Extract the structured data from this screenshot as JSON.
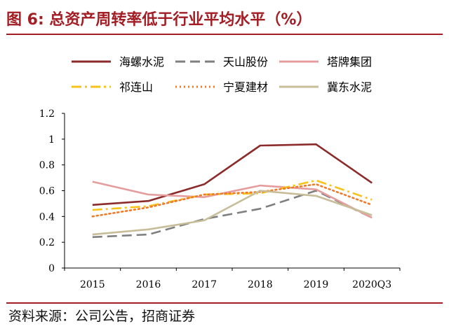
{
  "header": {
    "title": "图 6:  总资产周转率低于行业平均水平（%）"
  },
  "footer": {
    "source": "资料来源：公司公告，招商证券"
  },
  "colors": {
    "accent": "#a31d24"
  },
  "chart_data": {
    "type": "line",
    "title": "总资产周转率低于行业平均水平（%）",
    "xlabel": "",
    "ylabel": "",
    "categories": [
      "2015",
      "2016",
      "2017",
      "2018",
      "2019",
      "2020Q3"
    ],
    "ylim": [
      0,
      1.2
    ],
    "yticks": [
      "0",
      "0.2",
      "0.4",
      "0.6",
      "0.8",
      "1",
      "1.2"
    ],
    "grid": false,
    "legend_position": "top",
    "series": [
      {
        "name": "海螺水泥",
        "color": "#8b2b2b",
        "style": "solid",
        "values": [
          0.49,
          0.52,
          0.65,
          0.95,
          0.96,
          0.66
        ]
      },
      {
        "name": "天山股份",
        "color": "#7f7f7f",
        "style": "dashed",
        "values": [
          0.24,
          0.26,
          0.38,
          0.46,
          0.6,
          0.39
        ]
      },
      {
        "name": "塔牌集团",
        "color": "#e59c9c",
        "style": "solid",
        "values": [
          0.67,
          0.57,
          0.55,
          0.64,
          0.61,
          0.39
        ]
      },
      {
        "name": "祁连山",
        "color": "#f7c31a",
        "style": "dashdot",
        "values": [
          0.45,
          0.48,
          0.57,
          0.58,
          0.68,
          0.53
        ]
      },
      {
        "name": "宁夏建材",
        "color": "#ec7a2a",
        "style": "dotted",
        "values": [
          0.4,
          0.47,
          0.57,
          0.59,
          0.65,
          0.49
        ]
      },
      {
        "name": "冀东水泥",
        "color": "#c7bd98",
        "style": "solid",
        "values": [
          0.26,
          0.3,
          0.37,
          0.6,
          0.56,
          0.41
        ]
      }
    ]
  }
}
